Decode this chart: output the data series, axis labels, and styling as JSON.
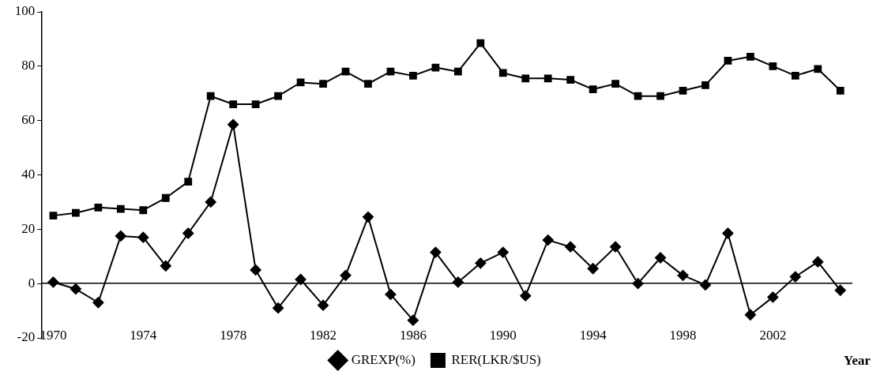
{
  "chart_data": {
    "type": "line",
    "xlabel": "Year",
    "categories": [
      "1970",
      null,
      null,
      null,
      "1974",
      null,
      null,
      null,
      "1978",
      null,
      null,
      null,
      "1982",
      null,
      null,
      null,
      "1986",
      null,
      null,
      null,
      "1990",
      null,
      null,
      null,
      "1994",
      null,
      null,
      null,
      "1998",
      null,
      null,
      null,
      "2002",
      null,
      null,
      null
    ],
    "series": [
      {
        "name": "GREXP(%)",
        "color": "#000000",
        "marker": "diamond",
        "values": [
          0.5,
          -2,
          -7,
          17.5,
          17,
          6.5,
          18.5,
          30,
          58.5,
          5,
          -9,
          1.5,
          -8,
          3,
          24.5,
          -4,
          -13.5,
          11.5,
          0.5,
          7.5,
          11.5,
          -4.5,
          16,
          13.5,
          5.5,
          13.5,
          0,
          9.5,
          3,
          -0.5,
          18.5,
          -11.5,
          -5,
          2.5,
          8,
          -2.5
        ]
      },
      {
        "name": "RER(LKR/$US)",
        "color": "#000000",
        "marker": "square",
        "values": [
          25,
          26,
          28,
          27.5,
          27,
          31.5,
          37.5,
          69,
          66,
          66,
          69,
          74,
          73.5,
          78,
          73.5,
          78,
          76.5,
          79.5,
          78,
          88.5,
          77.5,
          75.5,
          75.5,
          75,
          71.5,
          73.5,
          69,
          69,
          71,
          73,
          82,
          83.5,
          80,
          76.5,
          79,
          71
        ]
      }
    ],
    "ylim": [
      -20,
      100
    ],
    "yticks": [
      -20,
      0,
      20,
      40,
      60,
      80,
      100
    ],
    "legend": "bottom",
    "line_style": "solid"
  }
}
